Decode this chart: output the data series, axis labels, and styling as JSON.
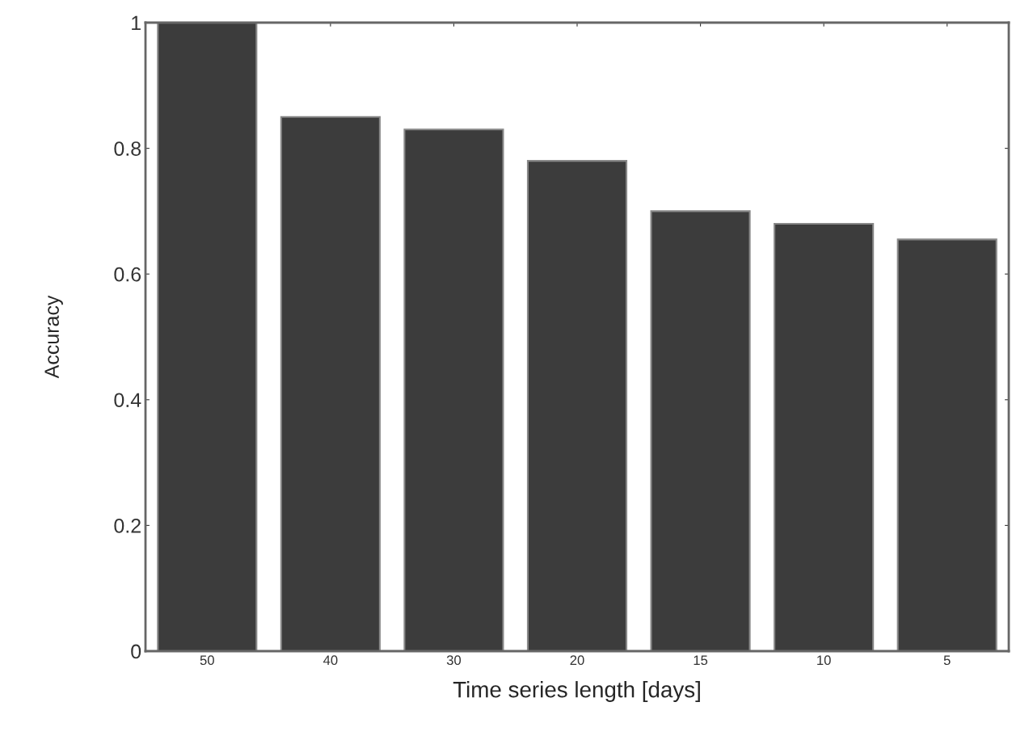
{
  "chart_data": {
    "type": "bar",
    "xlabel": "Time series length [days]",
    "ylabel": "Accuracy",
    "categories": [
      "50",
      "40",
      "30",
      "20",
      "15",
      "10",
      "5"
    ],
    "values": [
      1.0,
      0.85,
      0.83,
      0.78,
      0.7,
      0.68,
      0.655
    ],
    "color": "#3c3c3c",
    "ylim": [
      0,
      1
    ],
    "yticks": [
      0,
      0.2,
      0.4,
      0.6,
      0.8,
      1
    ],
    "grid": false
  }
}
